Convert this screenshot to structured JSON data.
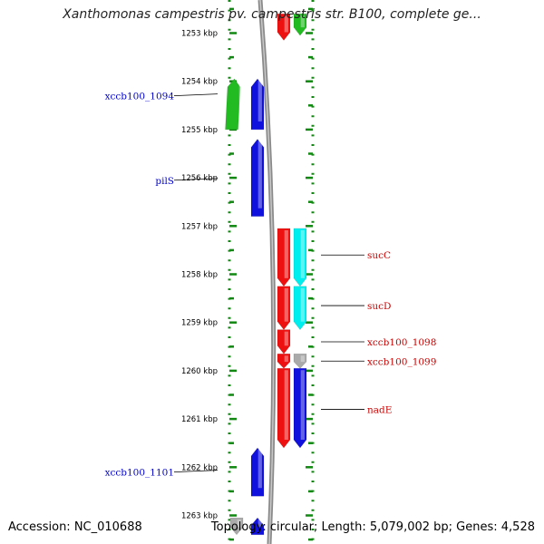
{
  "title": "Xanthomonas campestris pv. campestris str. B100, complete ge...",
  "footer": {
    "accession": "Accession: NC_010688",
    "summary": "Topology: circular; Length: 5,079,002 bp; Genes: 4,528"
  },
  "colors": {
    "green": "#22bb22",
    "blue": "#1111dd",
    "red": "#ee1111",
    "cyan": "#00eeee",
    "grey": "#aaaaaa",
    "ruler": "#118811",
    "label_left": "#0000cc",
    "label_right": "#cc0000"
  },
  "ruler": {
    "unit": "kbp",
    "ticks": [
      {
        "kbp": 1253,
        "label": "1253 kbp"
      },
      {
        "kbp": 1254,
        "label": "1254 kbp"
      },
      {
        "kbp": 1255,
        "label": "1255 kbp"
      },
      {
        "kbp": 1256,
        "label": "1256 kbp"
      },
      {
        "kbp": 1257,
        "label": "1257 kbp"
      },
      {
        "kbp": 1258,
        "label": "1258 kbp"
      },
      {
        "kbp": 1259,
        "label": "1259 kbp"
      },
      {
        "kbp": 1260,
        "label": "1260 kbp"
      },
      {
        "kbp": 1261,
        "label": "1261 kbp"
      },
      {
        "kbp": 1262,
        "label": "1262 kbp"
      },
      {
        "kbp": 1263,
        "label": "1263 kbp"
      }
    ]
  },
  "genes": [
    {
      "id": "top-red",
      "start": 1252.6,
      "end": 1253.15,
      "strand": "+",
      "lane": "inner-right",
      "color": "red"
    },
    {
      "id": "top-green",
      "start": 1252.6,
      "end": 1253.05,
      "strand": "+",
      "lane": "outer-right",
      "color": "green"
    },
    {
      "id": "xccb100_1094-cds",
      "start": 1253.95,
      "end": 1255.0,
      "strand": "-",
      "lane": "outer-left",
      "color": "green"
    },
    {
      "id": "xccb100_1094",
      "start": 1253.95,
      "end": 1255.0,
      "strand": "-",
      "lane": "inner-left",
      "color": "blue"
    },
    {
      "id": "pilS",
      "start": 1255.2,
      "end": 1256.8,
      "strand": "-",
      "lane": "inner-left",
      "color": "blue"
    },
    {
      "id": "sucC-cds",
      "start": 1257.05,
      "end": 1258.25,
      "strand": "+",
      "lane": "inner-right",
      "color": "red"
    },
    {
      "id": "sucC",
      "start": 1257.05,
      "end": 1258.25,
      "strand": "+",
      "lane": "outer-right",
      "color": "cyan"
    },
    {
      "id": "sucD-cds",
      "start": 1258.25,
      "end": 1259.15,
      "strand": "+",
      "lane": "inner-right",
      "color": "red"
    },
    {
      "id": "sucD",
      "start": 1258.25,
      "end": 1259.15,
      "strand": "+",
      "lane": "outer-right",
      "color": "cyan"
    },
    {
      "id": "xccb100_1098",
      "start": 1259.15,
      "end": 1259.65,
      "strand": "+",
      "lane": "inner-right",
      "color": "red"
    },
    {
      "id": "xccb100_1099",
      "start": 1259.65,
      "end": 1259.95,
      "strand": "+",
      "lane": "inner-right",
      "color": "red"
    },
    {
      "id": "xccb100_1099-gap",
      "start": 1259.65,
      "end": 1259.95,
      "strand": "+",
      "lane": "outer-right",
      "color": "grey"
    },
    {
      "id": "nadE-cds",
      "start": 1259.95,
      "end": 1261.6,
      "strand": "+",
      "lane": "inner-right",
      "color": "red"
    },
    {
      "id": "nadE",
      "start": 1259.95,
      "end": 1261.6,
      "strand": "+",
      "lane": "outer-right",
      "color": "blue"
    },
    {
      "id": "xccb100_1101",
      "start": 1261.6,
      "end": 1262.6,
      "strand": "-",
      "lane": "inner-left",
      "color": "blue"
    },
    {
      "id": "bottom-grey",
      "start": 1263.05,
      "end": 1263.4,
      "strand": "+",
      "lane": "outer-left",
      "color": "grey"
    },
    {
      "id": "bottom-blue",
      "start": 1263.05,
      "end": 1263.4,
      "strand": "-",
      "lane": "inner-left",
      "color": "blue"
    }
  ],
  "labels": [
    {
      "text": "xccb100_1094",
      "side": "left",
      "kbp": 1254.3
    },
    {
      "text": "pilS",
      "side": "left",
      "kbp": 1256.05
    },
    {
      "text": "sucC",
      "side": "right",
      "kbp": 1257.6
    },
    {
      "text": "sucD",
      "side": "right",
      "kbp": 1258.65
    },
    {
      "text": "xccb100_1098",
      "side": "right",
      "kbp": 1259.4
    },
    {
      "text": "xccb100_1099",
      "side": "right",
      "kbp": 1259.8
    },
    {
      "text": "nadE",
      "side": "right",
      "kbp": 1260.8
    },
    {
      "text": "xccb100_1101",
      "side": "left",
      "kbp": 1262.1
    }
  ]
}
